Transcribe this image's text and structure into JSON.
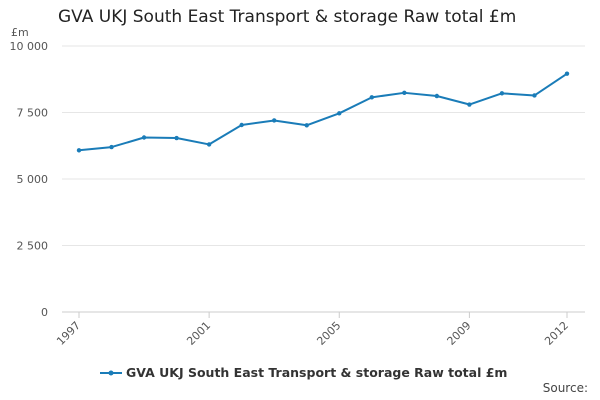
{
  "title": "GVA UKJ South East Transport & storage Raw total £m",
  "unit_label": "£m",
  "source_label": "Source:",
  "colors": {
    "series": "#1a7cb8",
    "grid": "#e6e6e6",
    "axis": "#cccccc"
  },
  "chart_data": {
    "type": "line",
    "x": [
      1997,
      1998,
      1999,
      2000,
      2001,
      2002,
      2003,
      2004,
      2005,
      2006,
      2007,
      2008,
      2009,
      2010,
      2011,
      2012
    ],
    "x_tick_labels": [
      "1997",
      "2001",
      "2005",
      "2009",
      "2012"
    ],
    "y_tick_labels": [
      "0",
      "2 500",
      "5 000",
      "7 500",
      "10 000"
    ],
    "y_ticks": [
      0,
      2500,
      5000,
      7500,
      10000
    ],
    "ylim": [
      0,
      10000
    ],
    "series": [
      {
        "name": "GVA UKJ South East Transport & storage Raw total £m",
        "values": [
          6080,
          6200,
          6560,
          6540,
          6300,
          7030,
          7200,
          7020,
          7470,
          8070,
          8240,
          8120,
          7800,
          8220,
          8140,
          8960
        ]
      }
    ],
    "grid": true,
    "legend_position": "bottom"
  }
}
